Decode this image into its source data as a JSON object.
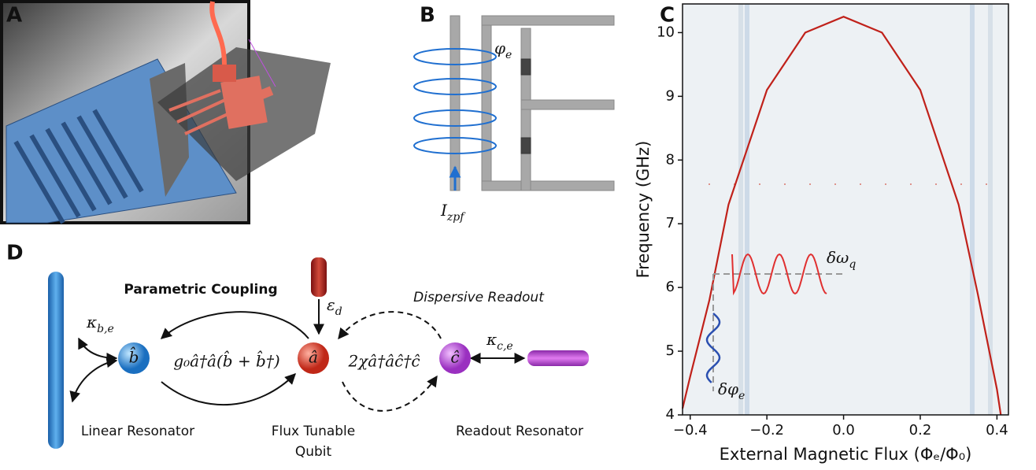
{
  "panel_labels": [
    "A",
    "B",
    "C",
    "D"
  ],
  "panel_b": {
    "phase": {
      "text": "φ",
      "sub": "e"
    },
    "current": {
      "text": "I",
      "sub": "zpf"
    }
  },
  "chart_data": {
    "type": "line",
    "xlabel": "External Magnetic Flux (Φₑ/Φ₀)",
    "ylabel": "Frequency (GHz)",
    "xlim": [
      -0.42,
      0.43
    ],
    "ylim": [
      4,
      10.45
    ],
    "xticks": [
      {
        "value": -0.4,
        "label": "−0.4"
      },
      {
        "value": -0.2,
        "label": "−0.2"
      },
      {
        "value": 0,
        "label": "0.0"
      },
      {
        "value": 0.2,
        "label": "0.2"
      },
      {
        "value": 0.4,
        "label": "0.4"
      }
    ],
    "yticks": [
      4,
      5,
      6,
      7,
      8,
      9,
      10
    ],
    "x": [
      -0.42,
      -0.4,
      -0.35,
      -0.3,
      -0.2,
      -0.1,
      0,
      0.1,
      0.2,
      0.3,
      0.35,
      0.4,
      0.41
    ],
    "values": [
      4.1,
      4.6,
      5.8,
      7.3,
      9.1,
      10.0,
      10.25,
      10.0,
      9.1,
      7.3,
      5.9,
      4.4,
      4.0
    ],
    "color": "#c0211a",
    "annotations": [
      {
        "text": "δω",
        "sub": "q"
      },
      {
        "text": "δφ",
        "sub": "e"
      }
    ]
  },
  "diagram": {
    "coupling_title": "Parametric Coupling",
    "readout_title": "Dispersive Readout",
    "kappa_b": {
      "text": "κ",
      "sub": "b,e"
    },
    "kappa_c": {
      "text": "κ",
      "sub": "c,e"
    },
    "drive": {
      "text": "ε",
      "sub": "d"
    },
    "coupling_term": "g₀â†â(b̂ + b̂†)",
    "dispersive_term": "2χâ†âĉ†ĉ",
    "nodes": [
      {
        "symbol": "b̂",
        "label": [
          "Linear Resonator"
        ]
      },
      {
        "symbol": "â",
        "label": [
          "Flux Tunable",
          "Qubit"
        ]
      },
      {
        "symbol": "ĉ",
        "label": [
          "Readout Resonator"
        ]
      }
    ]
  }
}
